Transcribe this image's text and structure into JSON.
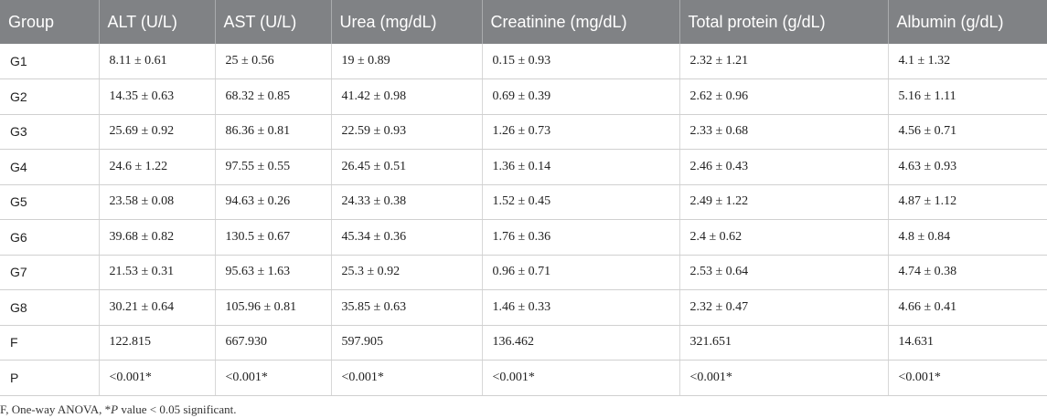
{
  "table": {
    "headers": [
      "Group",
      "ALT (U/L)",
      "AST (U/L)",
      "Urea (mg/dL)",
      "Creatinine (mg/dL)",
      "Total protein (g/dL)",
      "Albumin (g/dL)"
    ],
    "rows": [
      [
        "G1",
        "8.11 ± 0.61",
        "25 ± 0.56",
        "19 ± 0.89",
        "0.15 ± 0.93",
        "2.32 ± 1.21",
        "4.1 ± 1.32"
      ],
      [
        "G2",
        "14.35 ± 0.63",
        "68.32 ± 0.85",
        "41.42 ± 0.98",
        "0.69 ± 0.39",
        "2.62 ± 0.96",
        "5.16 ± 1.11"
      ],
      [
        "G3",
        "25.69 ± 0.92",
        "86.36 ± 0.81",
        "22.59 ± 0.93",
        "1.26 ± 0.73",
        "2.33 ± 0.68",
        "4.56 ± 0.71"
      ],
      [
        "G4",
        "24.6 ± 1.22",
        "97.55 ± 0.55",
        "26.45 ± 0.51",
        "1.36 ± 0.14",
        "2.46 ± 0.43",
        "4.63 ± 0.93"
      ],
      [
        "G5",
        "23.58 ± 0.08",
        "94.63 ± 0.26",
        "24.33 ± 0.38",
        "1.52 ± 0.45",
        "2.49 ± 1.22",
        "4.87 ± 1.12"
      ],
      [
        "G6",
        "39.68 ± 0.82",
        "130.5 ± 0.67",
        "45.34 ± 0.36",
        "1.76 ± 0.36",
        "2.4 ± 0.62",
        "4.8 ± 0.84"
      ],
      [
        "G7",
        "21.53 ± 0.31",
        "95.63 ± 1.63",
        "25.3 ± 0.92",
        "0.96 ± 0.71",
        "2.53 ± 0.64",
        "4.74 ± 0.38"
      ],
      [
        "G8",
        "30.21 ± 0.64",
        "105.96 ± 0.81",
        "35.85 ± 0.63",
        "1.46 ± 0.33",
        "2.32 ± 0.47",
        "4.66 ± 0.41"
      ],
      [
        "F",
        "122.815",
        "667.930",
        "597.905",
        "136.462",
        "321.651",
        "14.631"
      ],
      [
        "P",
        "<0.001*",
        "<0.001*",
        "<0.001*",
        "<0.001*",
        "<0.001*",
        "<0.001*"
      ]
    ]
  },
  "footnote": {
    "before": "F, One-way ANOVA, *",
    "italic": "P",
    "after": " value < 0.05 significant."
  }
}
